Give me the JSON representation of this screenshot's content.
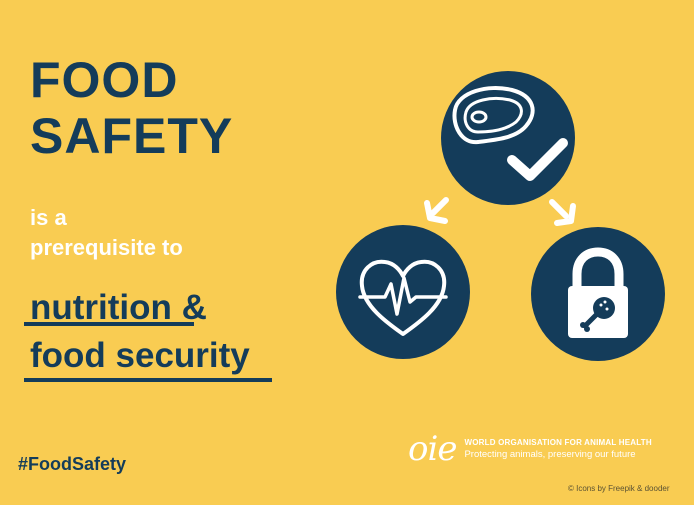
{
  "headline": {
    "line1": "FOOD",
    "line2": "SAFETY"
  },
  "subtitle": {
    "line1": "is a",
    "line2": "prerequisite to"
  },
  "emphasis": {
    "line1_word": "nutrition",
    "line1_rest": " &",
    "line2": "food security"
  },
  "hashtag": "#FoodSafety",
  "logo": {
    "mark": "oie",
    "name": "WORLD ORGANISATION FOR ANIMAL HEALTH",
    "tagline": "Protecting animals, preserving our future"
  },
  "credit": "© Icons by Freepik & dooder",
  "icons": [
    "steak-check-icon",
    "heart-pulse-icon",
    "padlock-drumstick-icon",
    "arrow-down-left-icon",
    "arrow-down-right-icon"
  ],
  "colors": {
    "background": "#f9cc52",
    "navy": "#143c5a",
    "white": "#ffffff"
  }
}
